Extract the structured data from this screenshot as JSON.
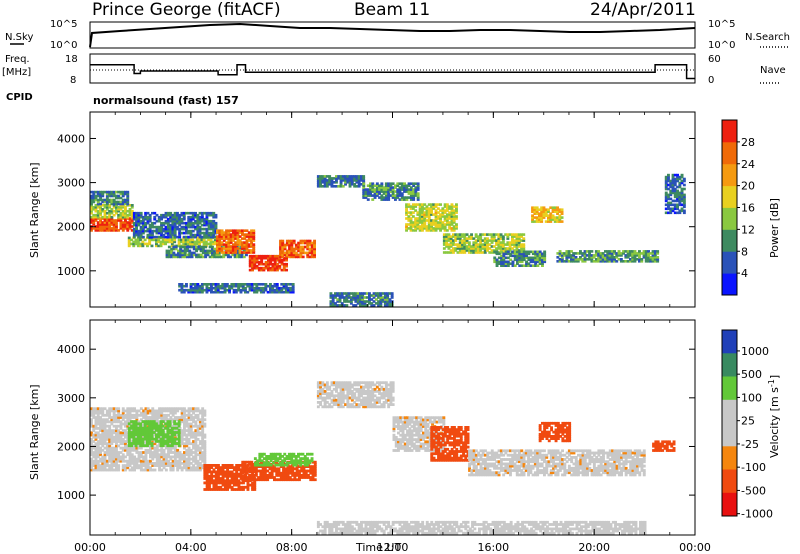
{
  "header": {
    "radar": "Prince George (fitACF)",
    "beam": "Beam 11",
    "date": "24/Apr/2011"
  },
  "top_panels": {
    "nsky_label": "N.Sky",
    "nsky_ticks": [
      "10^5",
      "10^0"
    ],
    "nsearch_label": "N.Search",
    "nsearch_ticks": [
      "10^5",
      "10^0"
    ],
    "freq_label": "Freq.",
    "freq_unit": "[MHz]",
    "freq_ticks": [
      "18",
      "8"
    ],
    "nave_label": "Nave",
    "nave_ticks": [
      "60",
      "0"
    ],
    "cpid_label": "CPID",
    "cpid_value": "normalsound (fast) 157"
  },
  "colors": {
    "power_scale": [
      "#0a14ff",
      "#2a52b8",
      "#3e8a60",
      "#8ac840",
      "#e8d020",
      "#f59a10",
      "#f06a08",
      "#ee2010"
    ],
    "velocity_scale": [
      "#e81010",
      "#f04a10",
      "#f5860e",
      "#c8c8c8",
      "#c8c8c8",
      "#62c838",
      "#388a60",
      "#2040b8"
    ]
  },
  "chart_data": [
    {
      "type": "line",
      "name": "frequency",
      "xlabel": "",
      "ylabel": "Freq. [MHz]",
      "ylim": [
        8,
        18
      ],
      "x": [
        "00:00",
        "01:25",
        "01:45",
        "02:00",
        "04:40",
        "05:05",
        "05:50",
        "06:10",
        "20:15",
        "22:10",
        "22:25",
        "23:15",
        "23:40"
      ],
      "values": [
        14.5,
        14.5,
        11,
        12,
        12,
        10.5,
        14.5,
        11.5,
        11.5,
        11.5,
        14.5,
        14.5,
        9
      ]
    },
    {
      "type": "heatmap",
      "name": "power",
      "xlabel": "",
      "ylabel": "Slant Range [km]",
      "xlim": [
        "00:00",
        "24:00"
      ],
      "ylim": [
        180,
        4600
      ],
      "x_ticks": [
        "00:00",
        "04:00",
        "08:00",
        "12:00",
        "16:00",
        "20:00",
        "00:00"
      ],
      "y_ticks": [
        "1000",
        "2000",
        "3000",
        "4000"
      ],
      "colorbar_label": "Power [dB]",
      "colorbar_ticks": [
        "4",
        "8",
        "12",
        "16",
        "20",
        "24",
        "28"
      ],
      "zlim": [
        0,
        30
      ],
      "regions": [
        {
          "t0": 0.0,
          "t1": 1.7,
          "r0": 1900,
          "r1": 2200,
          "value": 26
        },
        {
          "t0": 0.0,
          "t1": 1.7,
          "r0": 2200,
          "r1": 2500,
          "value": 14
        },
        {
          "t0": 0.0,
          "t1": 1.5,
          "r0": 2500,
          "r1": 2800,
          "value": 8
        },
        {
          "t0": 1.5,
          "t1": 5.0,
          "r0": 1550,
          "r1": 1750,
          "value": 14
        },
        {
          "t0": 1.7,
          "t1": 5.0,
          "r0": 1750,
          "r1": 2300,
          "value": 7
        },
        {
          "t0": 3.0,
          "t1": 6.2,
          "r0": 1300,
          "r1": 1550,
          "value": 9
        },
        {
          "t0": 5.0,
          "t1": 6.5,
          "r0": 1400,
          "r1": 1900,
          "value": 24
        },
        {
          "t0": 6.3,
          "t1": 7.8,
          "r0": 1000,
          "r1": 1350,
          "value": 28
        },
        {
          "t0": 7.5,
          "t1": 8.9,
          "r0": 1300,
          "r1": 1700,
          "value": 25
        },
        {
          "t0": 3.5,
          "t1": 8.0,
          "r0": 500,
          "r1": 700,
          "value": 7
        },
        {
          "t0": 9.0,
          "t1": 10.8,
          "r0": 2900,
          "r1": 3150,
          "value": 8
        },
        {
          "t0": 10.8,
          "t1": 13.0,
          "r0": 2600,
          "r1": 3000,
          "value": 9
        },
        {
          "t0": 12.5,
          "t1": 14.5,
          "r0": 1900,
          "r1": 2500,
          "value": 15
        },
        {
          "t0": 14.0,
          "t1": 17.2,
          "r0": 1400,
          "r1": 1850,
          "value": 14
        },
        {
          "t0": 16.0,
          "t1": 18.0,
          "r0": 1100,
          "r1": 1450,
          "value": 9
        },
        {
          "t0": 17.5,
          "t1": 18.7,
          "r0": 2100,
          "r1": 2450,
          "value": 18
        },
        {
          "t0": 18.5,
          "t1": 22.5,
          "r0": 1200,
          "r1": 1450,
          "value": 10
        },
        {
          "t0": 22.8,
          "t1": 23.6,
          "r0": 2300,
          "r1": 3200,
          "value": 7
        },
        {
          "t0": 9.5,
          "t1": 12.0,
          "r0": 200,
          "r1": 500,
          "value": 8
        }
      ]
    },
    {
      "type": "heatmap",
      "name": "velocity",
      "xlabel": "Time UT",
      "ylabel": "Slant Range [km]",
      "xlim": [
        "00:00",
        "24:00"
      ],
      "ylim": [
        180,
        4600
      ],
      "x_ticks": [
        "00:00",
        "04:00",
        "08:00",
        "12:00",
        "16:00",
        "20:00",
        "00:00"
      ],
      "y_ticks": [
        "1000",
        "2000",
        "3000",
        "4000"
      ],
      "colorbar_label": "Velocity [m s^-1]",
      "colorbar_ticks": [
        "1000",
        "500",
        "100",
        "25",
        "-25",
        "-100",
        "-500",
        "-1000"
      ],
      "zlim": [
        -1000,
        1000
      ],
      "regions": [
        {
          "t0": 0.0,
          "t1": 4.5,
          "r0": 1500,
          "r1": 2800,
          "value": 0
        },
        {
          "t0": 1.5,
          "t1": 3.5,
          "r0": 2000,
          "r1": 2500,
          "value": 300
        },
        {
          "t0": 4.5,
          "t1": 6.5,
          "r0": 1100,
          "r1": 1600,
          "value": -300
        },
        {
          "t0": 6.0,
          "t1": 8.9,
          "r0": 1300,
          "r1": 1700,
          "value": -150
        },
        {
          "t0": 6.5,
          "t1": 8.8,
          "r0": 1600,
          "r1": 1850,
          "value": 250
        },
        {
          "t0": 9.0,
          "t1": 12.0,
          "r0": 2800,
          "r1": 3300,
          "value": 0
        },
        {
          "t0": 12.0,
          "t1": 14.0,
          "r0": 1900,
          "r1": 2600,
          "value": 0
        },
        {
          "t0": 13.5,
          "t1": 15.0,
          "r0": 1700,
          "r1": 2400,
          "value": -200
        },
        {
          "t0": 15.0,
          "t1": 22.0,
          "r0": 1400,
          "r1": 1900,
          "value": 0
        },
        {
          "t0": 17.8,
          "t1": 19.0,
          "r0": 2100,
          "r1": 2500,
          "value": -300
        },
        {
          "t0": 22.3,
          "t1": 23.2,
          "r0": 1900,
          "r1": 2100,
          "value": -250
        },
        {
          "t0": 9.0,
          "t1": 22.0,
          "r0": 200,
          "r1": 450,
          "value": 10
        }
      ]
    }
  ]
}
